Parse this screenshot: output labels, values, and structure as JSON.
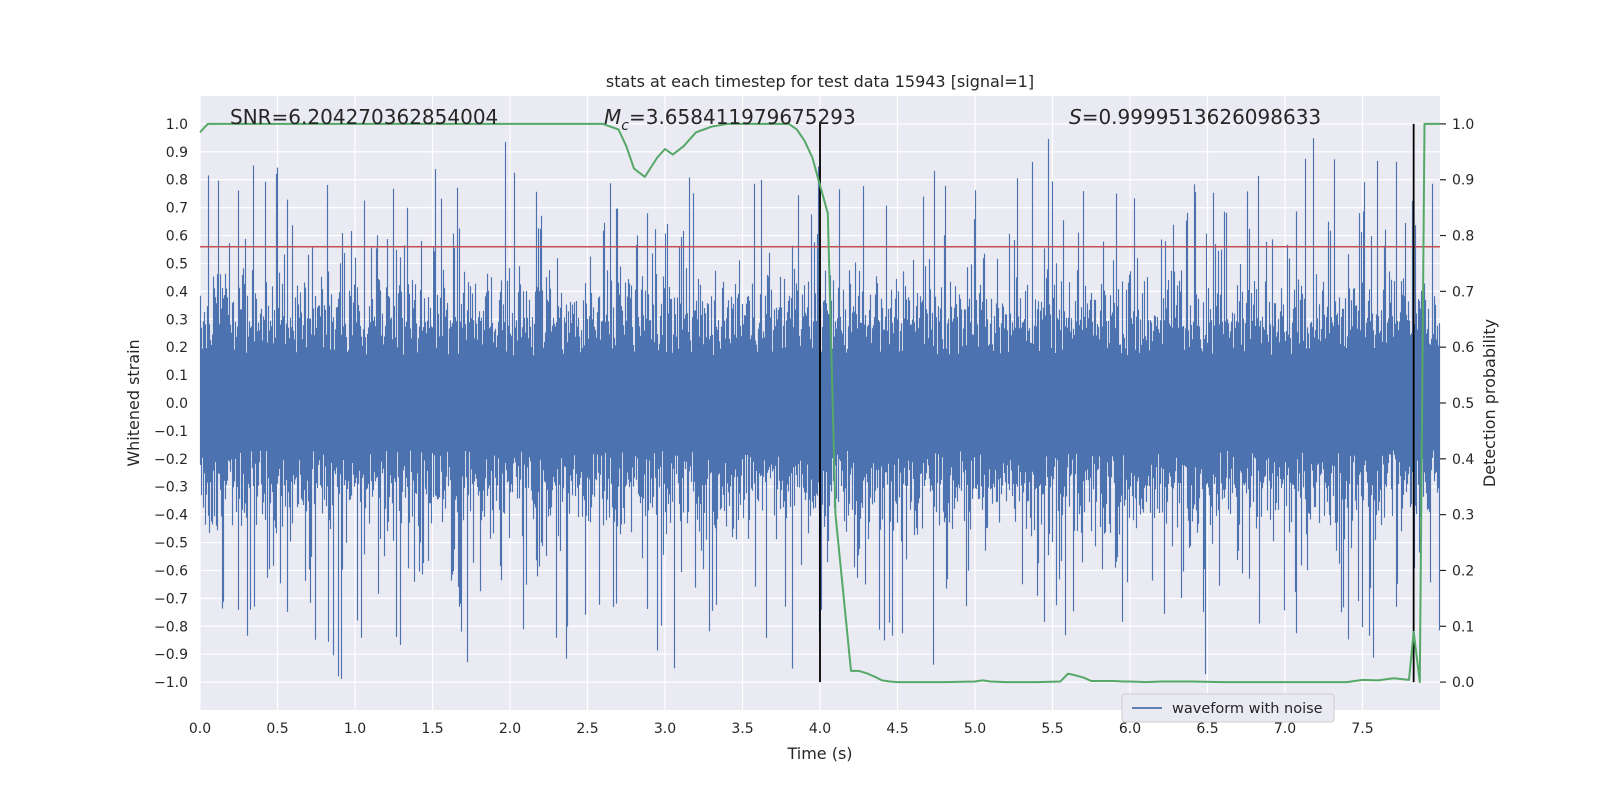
{
  "chart_data": {
    "type": "line",
    "title": "stats at each timestep for test data 15943 [signal=1]",
    "xlabel": "Time (s)",
    "ylabel": "Whitened strain",
    "y2label": "Detection probability",
    "xlim": [
      0.0,
      8.0
    ],
    "ylim": [
      -1.1,
      1.1
    ],
    "y2lim": [
      -0.05,
      1.05
    ],
    "xticks": [
      "0.0",
      "0.5",
      "1.0",
      "1.5",
      "2.0",
      "2.5",
      "3.0",
      "3.5",
      "4.0",
      "4.5",
      "5.0",
      "5.5",
      "6.0",
      "6.5",
      "7.0",
      "7.5"
    ],
    "yticks": [
      "1.0",
      "0.9",
      "0.8",
      "0.7",
      "0.6",
      "0.5",
      "0.4",
      "0.3",
      "0.2",
      "0.1",
      "0.0",
      "−0.1",
      "−0.2",
      "−0.3",
      "−0.4",
      "−0.5",
      "−0.6",
      "−0.7",
      "−0.8",
      "−0.9",
      "−1.0"
    ],
    "y2ticks": [
      "1.0",
      "0.9",
      "0.8",
      "0.7",
      "0.6",
      "0.5",
      "0.4",
      "0.3",
      "0.2",
      "0.1",
      "0.0"
    ],
    "annotations": {
      "snr": "SNR=6.204270362854004",
      "mc_symbol": "M",
      "mc_sub": "c",
      "mc_value": "=3.658411979675293",
      "s_symbol": "S",
      "s_value": "=0.9999513626098633"
    },
    "threshold": 0.78,
    "vlines": [
      4.0,
      7.83
    ],
    "legend": "waveform with noise",
    "colors": {
      "waveform": "#4c72b0",
      "probability": "#55a868",
      "threshold": "#c44e52",
      "vline": "#000000",
      "background": "#eaeaf2",
      "grid": "#ffffff"
    },
    "series": [
      {
        "name": "detection probability",
        "axis": "right",
        "x": [
          0.0,
          0.05,
          0.1,
          0.2,
          0.3,
          0.4,
          0.5,
          0.6,
          0.7,
          0.8,
          0.9,
          1.0,
          1.2,
          1.4,
          1.6,
          1.8,
          2.0,
          2.2,
          2.4,
          2.6,
          2.7,
          2.75,
          2.8,
          2.87,
          2.95,
          3.0,
          3.05,
          3.12,
          3.2,
          3.25,
          3.3,
          3.4,
          3.5,
          3.6,
          3.7,
          3.8,
          3.85,
          3.9,
          3.95,
          4.0,
          4.05,
          4.1,
          4.2,
          4.25,
          4.3,
          4.35,
          4.4,
          4.45,
          4.5,
          4.6,
          4.8,
          5.0,
          5.05,
          5.1,
          5.2,
          5.4,
          5.55,
          5.6,
          5.65,
          5.7,
          5.75,
          5.8,
          5.9,
          5.95,
          6.0,
          6.1,
          6.2,
          6.4,
          6.6,
          6.8,
          7.0,
          7.2,
          7.4,
          7.5,
          7.6,
          7.7,
          7.8,
          7.83,
          7.87,
          7.9,
          7.95,
          8.0
        ],
        "values": [
          0.985,
          1.0,
          1.0,
          1.0,
          1.0,
          1.0,
          1.0,
          1.0,
          1.0,
          1.0,
          1.0,
          1.0,
          1.0,
          1.0,
          1.0,
          1.0,
          1.0,
          1.0,
          1.0,
          1.0,
          0.99,
          0.96,
          0.92,
          0.905,
          0.94,
          0.955,
          0.945,
          0.96,
          0.985,
          0.99,
          0.995,
          1.0,
          1.0,
          1.0,
          1.0,
          1.0,
          0.99,
          0.97,
          0.94,
          0.89,
          0.84,
          0.3,
          0.02,
          0.02,
          0.016,
          0.01,
          0.003,
          0.001,
          0.0,
          0.0,
          0.0,
          0.001,
          0.003,
          0.001,
          0.0,
          0.0,
          0.001,
          0.015,
          0.012,
          0.008,
          0.002,
          0.002,
          0.002,
          0.001,
          0.001,
          0.0,
          0.001,
          0.001,
          0.0,
          0.0,
          0.0,
          0.0,
          0.0,
          0.004,
          0.003,
          0.007,
          0.004,
          0.09,
          0.0,
          1.0,
          1.0,
          1.0
        ]
      }
    ]
  }
}
